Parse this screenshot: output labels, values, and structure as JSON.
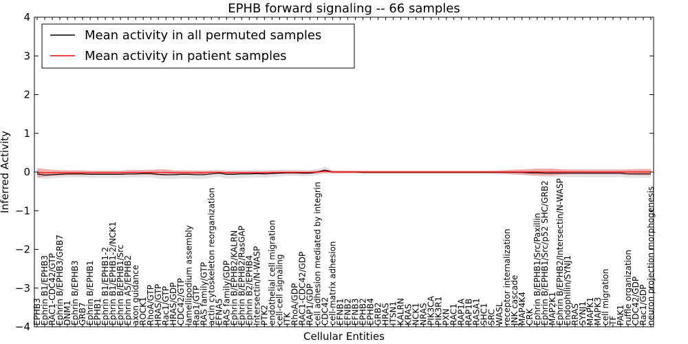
{
  "chart_data": {
    "type": "line",
    "title": "EPHB forward signaling -- 66 samples",
    "xlabel": "Cellular Entities",
    "ylabel": "Inferred Activity",
    "ylim": [
      -4,
      4
    ],
    "yticks": [
      -4,
      -3,
      -2,
      -1,
      0,
      1,
      2,
      3,
      4
    ],
    "ytick_labels": [
      "−4",
      "−3",
      "−2",
      "−1",
      "0",
      "1",
      "2",
      "3",
      "4"
    ],
    "grid": false,
    "legend_position": "top-left",
    "categories": [
      "EPHB3",
      "Ephrin B1/EPHB3",
      "RAC1-CDC42/GTP",
      "Ephrin B/EPHB3/GRB7",
      "DNM1",
      "Ephrin B/EPHB3",
      "GRB7",
      "Ephrin B/EPHB1",
      "EPHB1",
      "Ephrin B1/EPHB1-2",
      "Ephrin B1/EPHB1-2/NCK1",
      "Ephrin B/EPHB1/Src",
      "Ephrin A5/EPHB2",
      "axon guidance",
      "ROCK1",
      "RhoA/GTP",
      "HRAS/GTP",
      "Rac1/GTP",
      "HRAS/GDP",
      "CDC42/GTP",
      "lamellipodium assembly",
      "Rap1/GTP",
      "RAS family/GTP",
      "actin cytoskeleton reorganization",
      "EFNA5",
      "RAS family/GDP",
      "Ephrin B/EPHB2/KALRN",
      "Ephrin B/EPHB2/RasGAP",
      "Ephrin B2/EPHB4",
      "Intersectin/N-WASP",
      "PTK2",
      "endothelial cell migration",
      "cell-cell signaling",
      "ITK",
      "RhoA/GDP",
      "RAC1-CDC42/GDP",
      "RAP1/GDP",
      "cell adhesion mediated by integrin",
      "CDC42",
      "cell-matrix adhesion",
      "EFNB1",
      "EFNB2",
      "EFNB3",
      "EPHB2",
      "EPHB4",
      "GRB2",
      "HRAS",
      "ITSN1",
      "KALRN",
      "KRAS",
      "NCK1",
      "NRAS",
      "PIK3CA",
      "PIK3R1",
      "PXN",
      "RAC1",
      "RAP1A",
      "RAP1B",
      "RASA1",
      "SHC1",
      "SRC",
      "WASL",
      "receptor internalization",
      "JNK cascade",
      "MAP4K4",
      "CRK",
      "Ephrin B/EPHB1/Src/Paxillin",
      "Ephrin B/EPHB1/Src/p52 SHC/GRB2",
      "MAP2K1",
      "Ephrin B/EPHB2/Intersectin/N-WASP",
      "Endophilin/SYNJ1",
      "RRAS",
      "SYNJ1",
      "MAPK1",
      "MAPK3",
      "cell migration",
      "TF",
      "PAK1",
      "ruffle organization",
      "CDC42/GDP",
      "Rac1/GDP",
      "neuron projection morphogenesis"
    ],
    "series": [
      {
        "name": "Mean activity in all permuted samples",
        "color": "#000000",
        "band_color": "#cccccc",
        "values": [
          -0.05,
          -0.08,
          -0.07,
          -0.06,
          -0.05,
          -0.05,
          -0.05,
          -0.06,
          -0.06,
          -0.06,
          -0.06,
          -0.06,
          -0.05,
          -0.05,
          -0.04,
          -0.04,
          -0.06,
          -0.07,
          -0.07,
          -0.06,
          -0.06,
          -0.07,
          -0.07,
          -0.05,
          -0.03,
          -0.06,
          -0.06,
          -0.05,
          -0.05,
          -0.04,
          -0.05,
          -0.04,
          -0.03,
          -0.02,
          -0.02,
          -0.03,
          -0.03,
          0.0,
          0.05,
          0.0,
          0.0,
          0.0,
          0.0,
          -0.01,
          -0.01,
          -0.01,
          -0.01,
          -0.01,
          -0.01,
          -0.01,
          -0.01,
          -0.01,
          -0.01,
          -0.01,
          -0.01,
          -0.01,
          -0.01,
          -0.01,
          -0.01,
          -0.01,
          -0.01,
          -0.01,
          -0.01,
          -0.01,
          -0.01,
          -0.02,
          -0.02,
          -0.03,
          -0.03,
          -0.03,
          -0.03,
          -0.03,
          -0.03,
          -0.03,
          -0.03,
          -0.03,
          -0.03,
          -0.03,
          -0.05,
          -0.05,
          -0.05,
          -0.05
        ],
        "band_halfwidth": [
          0.1,
          0.1,
          0.1,
          0.09,
          0.09,
          0.09,
          0.09,
          0.09,
          0.09,
          0.09,
          0.09,
          0.09,
          0.09,
          0.09,
          0.1,
          0.1,
          0.11,
          0.11,
          0.11,
          0.11,
          0.11,
          0.11,
          0.11,
          0.1,
          0.09,
          0.11,
          0.11,
          0.1,
          0.1,
          0.1,
          0.1,
          0.09,
          0.09,
          0.08,
          0.08,
          0.08,
          0.08,
          0.08,
          0.09,
          0.05,
          0.04,
          0.04,
          0.04,
          0.04,
          0.04,
          0.04,
          0.04,
          0.04,
          0.04,
          0.04,
          0.04,
          0.04,
          0.04,
          0.04,
          0.04,
          0.04,
          0.04,
          0.04,
          0.04,
          0.04,
          0.05,
          0.05,
          0.05,
          0.06,
          0.06,
          0.08,
          0.09,
          0.1,
          0.1,
          0.1,
          0.1,
          0.1,
          0.1,
          0.1,
          0.1,
          0.1,
          0.1,
          0.1,
          0.1,
          0.1,
          0.1,
          0.1
        ]
      },
      {
        "name": "Mean activity in patient samples",
        "color": "#ff0000",
        "band_color": "#f08080",
        "values": [
          -0.02,
          -0.02,
          -0.02,
          -0.02,
          -0.02,
          -0.02,
          -0.02,
          -0.02,
          -0.02,
          -0.02,
          -0.02,
          -0.02,
          -0.01,
          -0.01,
          -0.01,
          -0.01,
          -0.01,
          -0.01,
          -0.02,
          -0.02,
          -0.02,
          -0.02,
          -0.02,
          -0.01,
          -0.01,
          -0.02,
          -0.02,
          -0.02,
          -0.02,
          -0.02,
          -0.02,
          -0.01,
          -0.01,
          -0.01,
          -0.01,
          -0.01,
          -0.01,
          0.0,
          0.02,
          0.0,
          0.0,
          0.0,
          0.0,
          0.0,
          0.0,
          0.0,
          0.0,
          0.0,
          0.0,
          0.0,
          0.0,
          0.0,
          0.0,
          0.0,
          0.0,
          0.0,
          0.0,
          0.0,
          0.0,
          0.0,
          0.0,
          0.0,
          0.0,
          0.0,
          0.0,
          0.0,
          0.0,
          0.0,
          0.0,
          0.0,
          0.0,
          0.0,
          0.0,
          0.0,
          0.0,
          0.0,
          0.0,
          0.0,
          0.0,
          0.0,
          0.0,
          0.0
        ],
        "band_halfwidth": [
          0.12,
          0.1,
          0.08,
          0.07,
          0.06,
          0.06,
          0.06,
          0.05,
          0.05,
          0.05,
          0.05,
          0.05,
          0.06,
          0.06,
          0.06,
          0.06,
          0.08,
          0.08,
          0.06,
          0.05,
          0.05,
          0.05,
          0.05,
          0.04,
          0.04,
          0.04,
          0.04,
          0.04,
          0.04,
          0.04,
          0.04,
          0.04,
          0.04,
          0.04,
          0.04,
          0.04,
          0.04,
          0.04,
          0.04,
          0.03,
          0.03,
          0.03,
          0.03,
          0.03,
          0.03,
          0.03,
          0.03,
          0.03,
          0.03,
          0.03,
          0.03,
          0.03,
          0.03,
          0.03,
          0.03,
          0.03,
          0.03,
          0.03,
          0.03,
          0.03,
          0.03,
          0.04,
          0.05,
          0.06,
          0.07,
          0.08,
          0.09,
          0.09,
          0.09,
          0.07,
          0.06,
          0.06,
          0.06,
          0.06,
          0.06,
          0.06,
          0.06,
          0.06,
          0.07,
          0.08,
          0.08,
          0.08
        ]
      }
    ]
  }
}
